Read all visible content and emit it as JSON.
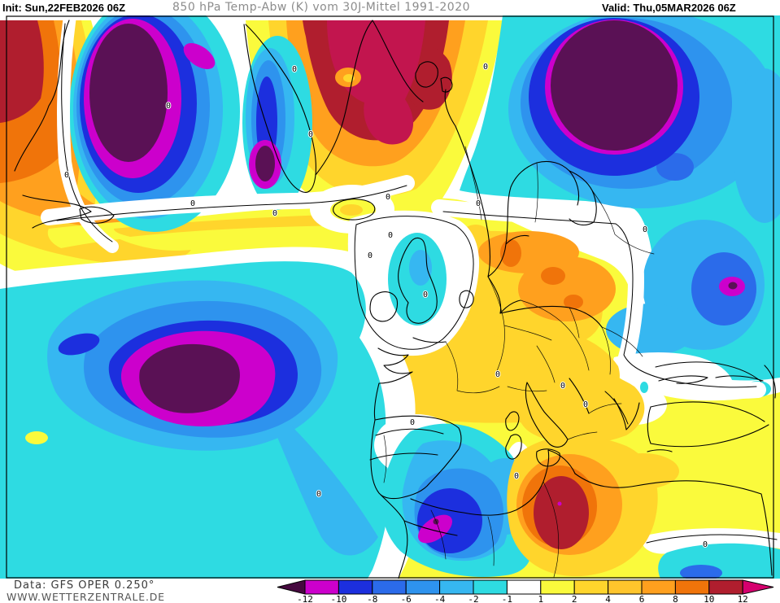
{
  "header": {
    "init_label": "Init:",
    "init_value": "Sun,22FEB2026 06Z",
    "title": "850 hPa Temp-Abw (K) vom 30J-Mittel 1991-2020",
    "valid_label": "Valid:",
    "valid_value": "Thu,05MAR2026 06Z"
  },
  "map": {
    "contour_label": "0"
  },
  "colorbar": {
    "boundaries": [
      "-12",
      "-10",
      "-8",
      "-6",
      "-4",
      "-2",
      "-1",
      "1",
      "2",
      "4",
      "6",
      "8",
      "10",
      "12"
    ],
    "colors": [
      "#CC00CC",
      "#1C2FDE",
      "#2B6BEA",
      "#2E93EE",
      "#36B7F1",
      "#2EDBE2",
      "#FFFFFF",
      "#FAFA3C",
      "#FFD52C",
      "#FFC52C",
      "#FFA01E",
      "#F0740A",
      "#B01E2E"
    ],
    "arrow_left_color": "#46093F",
    "arrow_right_color": "#D6006E"
  },
  "footer": {
    "data_line": "Data: GFS OPER 0.250°",
    "site_line": "WWW.WETTERZENTRALE.DE"
  }
}
